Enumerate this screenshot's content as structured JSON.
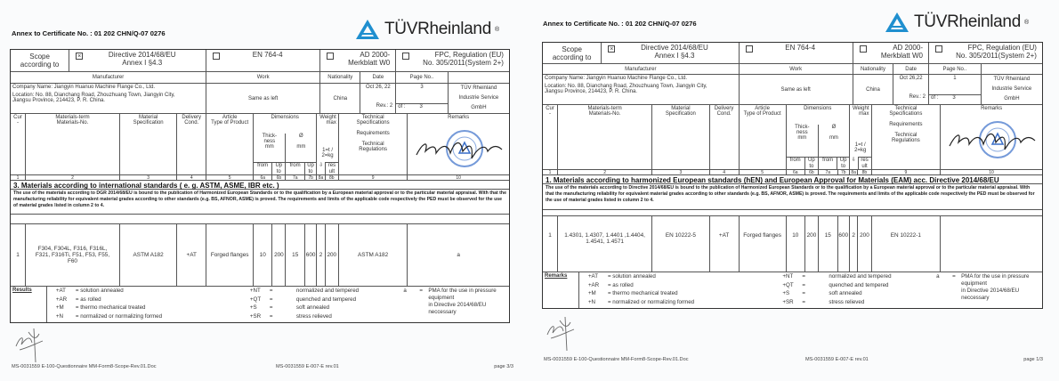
{
  "pages": [
    {
      "annex_title": "Annex to Certificate No. : 01 202 CHN/Q-07 0276",
      "logo_text": "TÜVRheinland",
      "scope": {
        "label": "Scope\naccording to",
        "options": [
          {
            "checked": true,
            "mark": "☒",
            "label": "Directive 2014/68/EU\nAnnex I §4.3"
          },
          {
            "checked": false,
            "mark": "☐",
            "label": "EN 764-4"
          },
          {
            "checked": false,
            "mark": "☐",
            "label": "AD 2000-\nMerkblatt W0"
          },
          {
            "checked": false,
            "mark": "☐",
            "label": "FPC, Regulation (EU)\nNo. 305/2011(System 2+)"
          }
        ]
      },
      "info_headers": {
        "manufacturer": "Manufacturer",
        "work": "Work",
        "nationality": "Nationality",
        "date": "Date",
        "page_no": "Page No.."
      },
      "manufacturer": {
        "company": "Company Name:  Jiangyin Huanuo Machine Flange Co., Ltd.",
        "location": "Location:  No. 88, Dianchang Road, Zhouzhuang Town, Jiangyin City,\nJiangsu Province, 214423, P. R. China.",
        "work": "Same as left",
        "nationality": "China",
        "date": "Oct 26, 22",
        "rev": "Rev.: 2",
        "page": "3",
        "of_label": "of :",
        "of": "3",
        "issuer": "TÜV Rheinland\nIndustrie Service\nGmbH"
      },
      "columns": {
        "cur": "Cur\n-",
        "materials": "Materials-term\nMaterials-No.",
        "spec": "Material\nSpecification",
        "delivery": "Delivery\nCond.",
        "article": "Article\nType of Product",
        "dimensions": "Dimensions",
        "thickness": "Thick-\nness\nmm",
        "diameter": "Ø\n\nmm",
        "from": "from",
        "upto": "Up\nto",
        "weight": "Weight\nmax",
        "weight_unit": "1=t /\n2=kg",
        "arrow": "⇩",
        "result": "res\nult",
        "technical": "Technical\nSpecifications\n\nRequirements\n\nTechnical\nRegulations",
        "remarks": "Remarks"
      },
      "column_numbers": [
        "1",
        "2",
        "3",
        "4",
        "5",
        "6a",
        "6b",
        "7a",
        "7b",
        "8a",
        "8b",
        "9",
        "10"
      ],
      "section_heading": "3. Materials according to international standards ( e. g. ASTM, ASME, IBR etc. )",
      "notice": "The use of the materials according to  DGR 2014/68/EU is bound to the  publication of Harmonized European Standards or to the qualification by a European  material approval or to the particular material appraisal. With that the manufacturing reliability for equivalent material grades according to other standards (e.g. BS, AFNOR, ASME) is proved. The requirements and limits of the applicable code respectively the PED must be observed for the use of material grades listed in column 2 to 4.",
      "data_row": [
        "1",
        "F304, F304L, F316, F316L,\nF321, F316Ti, F51, F53, F55,\nF60",
        "ASTM A182",
        "+AT",
        "Forged flanges",
        "10",
        "200",
        "15",
        "600",
        "2",
        "200",
        "ASTM A182",
        "a"
      ],
      "legend_label": "Results",
      "legend": {
        "col1": [
          [
            "+AT",
            "= solution annealed"
          ],
          [
            "+AR",
            "= as rolled"
          ],
          [
            "+M",
            "= thermo mechanical treated"
          ],
          [
            "+N",
            "= normalized or normalizing formed"
          ]
        ],
        "col2": [
          [
            "+NT",
            "=",
            "normalized and tempered"
          ],
          [
            "+QT",
            "=",
            "quenched and tempered"
          ],
          [
            "+S",
            "=",
            "soft annealed"
          ],
          [
            "+SR",
            "=",
            "stress relieved"
          ]
        ],
        "col3": [
          [
            "a",
            "=",
            "PMA for the use in pressure equipment\nin Directive 2014/68/EU neccessary"
          ]
        ]
      },
      "footer": {
        "left": "MS-0031559 E-100-Questionnaire MM-Form8-Scope-Rev.01.Doc",
        "center": "MS-0031559 E-007-E rev.01",
        "right": "page 3/3"
      }
    },
    {
      "annex_title": "Annex to Certificate No. : 01 202 CHN/Q-07 0276",
      "logo_text": "TÜVRheinland",
      "scope": {
        "label": "Scope\naccording to",
        "options": [
          {
            "checked": true,
            "mark": "☒",
            "label": "Directive 2014/68/EU\nAnnex I §4.3"
          },
          {
            "checked": false,
            "mark": "☐",
            "label": "EN 764-4"
          },
          {
            "checked": false,
            "mark": "☐",
            "label": "AD 2000-\nMerkblatt W0"
          },
          {
            "checked": false,
            "mark": "☐",
            "label": "FPC, Regulation (EU)\nNo. 305/2011(System 2+)"
          }
        ]
      },
      "info_headers": {
        "manufacturer": "Manufacturer",
        "work": "Work",
        "nationality": "Nationality",
        "date": "Date",
        "page_no": "Page No.."
      },
      "manufacturer": {
        "company": "Company Name:  Jiangyin Huanuo Machine Flange Co., Ltd.",
        "location": "Location:  No. 88, Dianchang Road, Zhouzhuang Town, Jiangyin City,\nJiangsu Province, 214423, P. R. China.",
        "work": "Same as left",
        "nationality": "China",
        "date": "Oct 26,22",
        "rev": "Rev.: 2",
        "page": "1",
        "of_label": "of :",
        "of": "3",
        "issuer": "TÜV Rheinland\nIndustrie Service\nGmbH"
      },
      "columns": {
        "cur": "Cur\n-",
        "materials": "Materials-term\nMaterials-No.",
        "spec": "Material\nSpecification",
        "delivery": "Delivery\nCond.",
        "article": "Article\nType of Product",
        "dimensions": "Dimensions",
        "thickness": "Thick-\nness\nmm",
        "diameter": "Ø\n\nmm",
        "from": "from",
        "upto": "Up\nto",
        "weight": "Weight\nmax",
        "weight_unit": "1=t /\n2=kg",
        "arrow": "⇩",
        "result": "res\nult",
        "technical": "Technical\nSpecifications\n\nRequirements\n\nTechnical\nRegulations",
        "remarks": "Remarks"
      },
      "column_numbers": [
        "1",
        "2",
        "3",
        "4",
        "5",
        "6a",
        "6b",
        "7a",
        "7b",
        "8a",
        "8b",
        "9",
        "10"
      ],
      "section_heading": "1. Materials according to harmonized European standards (hEN) and European Approval for Materials (EAM) acc. Directive 2014/68/EU",
      "notice": "The use of the materials according to Directive 2014/68/EU is bound to the publication of Harmonized European Standards or to the qualification by a European material approval or to the particular material appraisal. With that the manufacturing reliability for equivalent material grades according to other standards (e.g. BS, AFNOR, ASME) is proved. The requirements and limits of the applicable code respectively the PED must be observed for the use of material grades listed in column 2 to 4.",
      "data_row": [
        "1",
        "1.4301, 1.4307, 1.4401 ,1.4404,\n1.4541, 1.4571",
        "EN 10222-5",
        "+AT",
        "Forged flanges",
        "10",
        "200",
        "15",
        "600",
        "2",
        "200",
        "EN 10222-1",
        ""
      ],
      "legend_label": "Remarks",
      "legend": {
        "col1": [
          [
            "+AT",
            "= solution annealed"
          ],
          [
            "+AR",
            "= as rolled"
          ],
          [
            "+M",
            "= thermo mechanical treated"
          ],
          [
            "+N",
            "= normalized or normalizing formed"
          ]
        ],
        "col2": [
          [
            "+NT",
            "=",
            "normalized and tempered"
          ],
          [
            "+QT",
            "=",
            "quenched and tempered"
          ],
          [
            "+S",
            "=",
            "soft annealed"
          ],
          [
            "+SR",
            "=",
            "stress relieved"
          ]
        ],
        "col3": [
          [
            "a",
            "=",
            "PMA for the use in pressure equipment\nin Directive 2014/68/EU neccessary"
          ]
        ]
      },
      "footer": {
        "left": "MS-0031559 E-100-Questionnaire MM-Form8-Scope-Rev.01.Doc",
        "center": "MS-0031559 E-007-E rev.01",
        "right": "page 1/3"
      }
    }
  ],
  "colors": {
    "logo_blue": "#1f8fcf",
    "stamp_blue": "#3a6fc9",
    "border": "#333333"
  }
}
